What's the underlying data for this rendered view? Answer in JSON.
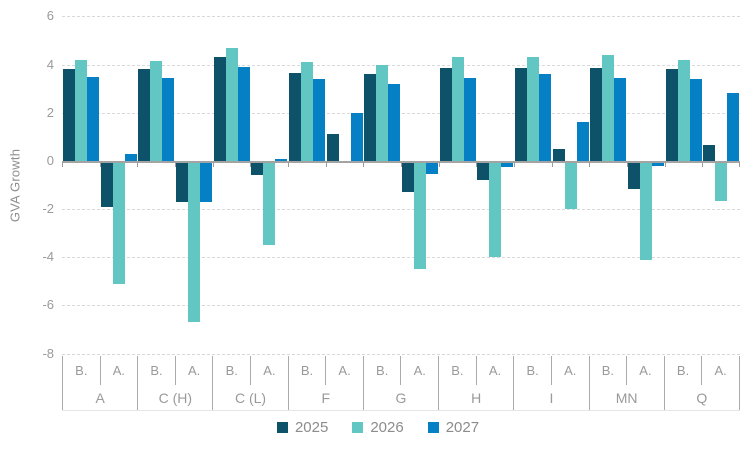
{
  "chart_data": {
    "type": "bar",
    "title": "",
    "xlabel": "",
    "ylabel": "GVA Growth",
    "ylim": [
      -8,
      6
    ],
    "y_ticks": [
      "6",
      "4",
      "2",
      "0",
      "-2",
      "-4",
      "-6",
      "-8"
    ],
    "grid": "dashed-horizontal",
    "legend_position": "bottom",
    "subgroup_labels": [
      "B.",
      "A."
    ],
    "series": [
      {
        "name": "2025",
        "color": "#0d5269"
      },
      {
        "name": "2026",
        "color": "#62c6c3"
      },
      {
        "name": "2027",
        "color": "#0680c4"
      }
    ],
    "groups": [
      {
        "label": "A",
        "values": {
          "B": [
            3.8,
            4.2,
            3.5
          ],
          "A": [
            -1.9,
            -5.1,
            0.3
          ]
        }
      },
      {
        "label": "C (H)",
        "values": {
          "B": [
            3.8,
            4.15,
            3.45
          ],
          "A": [
            -1.7,
            -6.7,
            -1.7
          ]
        }
      },
      {
        "label": "C (L)",
        "values": {
          "B": [
            4.3,
            4.7,
            3.9
          ],
          "A": [
            -0.6,
            -3.5,
            0.1
          ]
        }
      },
      {
        "label": "F",
        "values": {
          "B": [
            3.65,
            4.1,
            3.4
          ],
          "A": [
            1.1,
            0,
            2.0
          ]
        }
      },
      {
        "label": "G",
        "values": {
          "B": [
            3.6,
            4.0,
            3.2
          ],
          "A": [
            -1.3,
            -4.5,
            -0.55
          ]
        }
      },
      {
        "label": "H",
        "values": {
          "B": [
            3.85,
            4.3,
            3.45
          ],
          "A": [
            -0.8,
            -4.0,
            -0.25
          ]
        }
      },
      {
        "label": "I",
        "values": {
          "B": [
            3.85,
            4.3,
            3.6
          ],
          "A": [
            0.5,
            -2.0,
            1.6
          ]
        }
      },
      {
        "label": "MN",
        "values": {
          "B": [
            3.85,
            4.4,
            3.45
          ],
          "A": [
            -1.15,
            -4.1,
            -0.2
          ]
        }
      },
      {
        "label": "Q",
        "values": {
          "B": [
            3.8,
            4.2,
            3.4
          ],
          "A": [
            0.65,
            -1.65,
            2.8
          ]
        }
      }
    ]
  }
}
